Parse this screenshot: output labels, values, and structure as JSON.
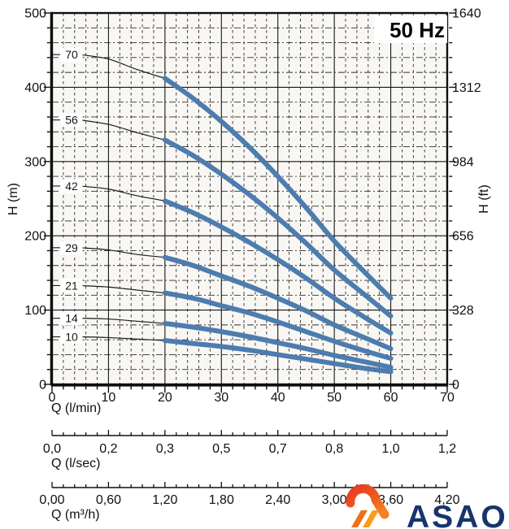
{
  "logo": {
    "text": "ASAO",
    "colors": {
      "flame_red": "#e63b22",
      "flame_orange": "#f58220",
      "stripe1": "#ef6f1c",
      "stripe2": "#f99c1b",
      "navy": "#17356b"
    }
  },
  "chart_data": {
    "type": "line",
    "title": "50 Hz",
    "x_axis": {
      "label": "Q (l/min)",
      "min": 0,
      "max": 70,
      "major_step": 10,
      "minor_step": 2,
      "tick_labels": [
        "0",
        "10",
        "20",
        "30",
        "40",
        "50",
        "60",
        "70"
      ]
    },
    "y_axis_left": {
      "label": "H (m)",
      "min": 0,
      "max": 500,
      "major_step": 100,
      "minor_step": 20,
      "tick_labels": [
        "500",
        "400",
        "300",
        "200",
        "100",
        "0"
      ]
    },
    "y_axis_right": {
      "label": "H (ft)",
      "tick_labels": [
        {
          "at_m": 500,
          "text": "1640"
        },
        {
          "at_m": 400,
          "text": "1312"
        },
        {
          "at_m": 300,
          "text": "984"
        },
        {
          "at_m": 200,
          "text": "656"
        },
        {
          "at_m": 100,
          "text": "328"
        },
        {
          "at_m": 0,
          "text": "0"
        }
      ]
    },
    "secondary_axes": [
      {
        "label": "Q (l/sec)",
        "tick_labels": [
          "0,0",
          "0,2",
          "0,3",
          "0,5",
          "0,7",
          "0,8",
          "1,0",
          "1,2"
        ]
      },
      {
        "label": "Q (m³/h)",
        "tick_labels": [
          "0,00",
          "0,60",
          "1,20",
          "1,80",
          "2,40",
          "3,00",
          "3,60",
          "4,20"
        ]
      }
    ],
    "grid": {
      "on": true,
      "v_minor_lmin": 2,
      "v_major_lmin": 10,
      "h_minor_m": 20,
      "h_major_m": 100
    },
    "style": {
      "curve_color": "#4d7cae",
      "thin_color": "#1a1a1a",
      "thick_from_q": 20
    },
    "series": [
      {
        "label": "70",
        "points": [
          [
            5,
            444
          ],
          [
            10,
            438
          ],
          [
            15,
            424
          ],
          [
            20,
            412
          ],
          [
            25,
            385
          ],
          [
            30,
            354
          ],
          [
            35,
            319
          ],
          [
            40,
            280
          ],
          [
            45,
            238
          ],
          [
            50,
            193
          ],
          [
            55,
            154
          ],
          [
            60,
            116
          ]
        ]
      },
      {
        "label": "56",
        "points": [
          [
            5,
            356
          ],
          [
            10,
            350
          ],
          [
            15,
            339
          ],
          [
            20,
            329
          ],
          [
            25,
            308
          ],
          [
            30,
            283
          ],
          [
            35,
            255
          ],
          [
            40,
            224
          ],
          [
            45,
            190
          ],
          [
            50,
            154
          ],
          [
            55,
            123
          ],
          [
            60,
            92
          ]
        ]
      },
      {
        "label": "42",
        "points": [
          [
            5,
            267
          ],
          [
            10,
            263
          ],
          [
            15,
            254
          ],
          [
            20,
            247
          ],
          [
            25,
            231
          ],
          [
            30,
            212
          ],
          [
            35,
            191
          ],
          [
            40,
            168
          ],
          [
            45,
            143
          ],
          [
            50,
            116
          ],
          [
            55,
            92
          ],
          [
            60,
            69
          ]
        ]
      },
      {
        "label": "29",
        "points": [
          [
            5,
            184
          ],
          [
            10,
            181
          ],
          [
            15,
            175
          ],
          [
            20,
            171
          ],
          [
            25,
            160
          ],
          [
            30,
            146
          ],
          [
            35,
            132
          ],
          [
            40,
            116
          ],
          [
            45,
            99
          ],
          [
            50,
            80
          ],
          [
            55,
            64
          ],
          [
            60,
            48
          ]
        ]
      },
      {
        "label": "21",
        "points": [
          [
            5,
            133
          ],
          [
            10,
            131
          ],
          [
            15,
            127
          ],
          [
            20,
            123
          ],
          [
            25,
            116
          ],
          [
            30,
            106
          ],
          [
            35,
            96
          ],
          [
            40,
            84
          ],
          [
            45,
            71
          ],
          [
            50,
            58
          ],
          [
            55,
            46
          ],
          [
            60,
            35
          ]
        ]
      },
      {
        "label": "14",
        "points": [
          [
            5,
            89
          ],
          [
            10,
            88
          ],
          [
            15,
            85
          ],
          [
            20,
            82
          ],
          [
            25,
            77
          ],
          [
            30,
            71
          ],
          [
            35,
            64
          ],
          [
            40,
            56
          ],
          [
            45,
            48
          ],
          [
            50,
            39
          ],
          [
            55,
            31
          ],
          [
            60,
            23
          ]
        ]
      },
      {
        "label": "10",
        "points": [
          [
            5,
            64
          ],
          [
            10,
            63
          ],
          [
            15,
            61
          ],
          [
            20,
            59
          ],
          [
            25,
            55
          ],
          [
            30,
            51
          ],
          [
            35,
            46
          ],
          [
            40,
            40
          ],
          [
            45,
            34
          ],
          [
            50,
            28
          ],
          [
            55,
            22
          ],
          [
            60,
            17
          ]
        ]
      }
    ]
  }
}
